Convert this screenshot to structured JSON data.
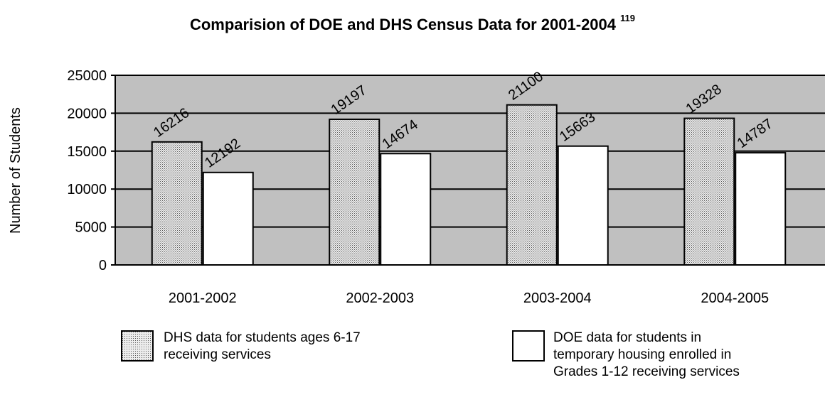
{
  "chart_data": {
    "type": "bar",
    "title": "Comparision of DOE and DHS Census Data for 2001-2004",
    "title_note": "119",
    "xlabel": "",
    "ylabel": "Number of Students",
    "ylim": [
      0,
      25000
    ],
    "yticks": [
      "0",
      "5000",
      "10000",
      "15000",
      "20000",
      "25000"
    ],
    "grid": true,
    "categories": [
      "2001-2002",
      "2002-2003",
      "2003-2004",
      "2004-2005"
    ],
    "series": [
      {
        "name": "DHS data for students ages 6-17 receiving services",
        "values": [
          16216,
          19197,
          21100,
          19328
        ],
        "pattern": "stipple"
      },
      {
        "name": "DOE data for students in temporary housing enrolled in Grades 1-12 receiving services",
        "values": [
          12192,
          14674,
          15663,
          14787
        ],
        "pattern": "white"
      }
    ],
    "legend_placement": "bottom",
    "legend_lines": [
      [
        "DHS data for students ages 6-17",
        "receiving services"
      ],
      [
        "DOE data for students in",
        "temporary housing enrolled in",
        "Grades 1-12 receiving services"
      ]
    ],
    "colors": {
      "plot_background": "#c0c0c0",
      "bar_edge": "#000000",
      "bar_white": "#ffffff"
    }
  }
}
